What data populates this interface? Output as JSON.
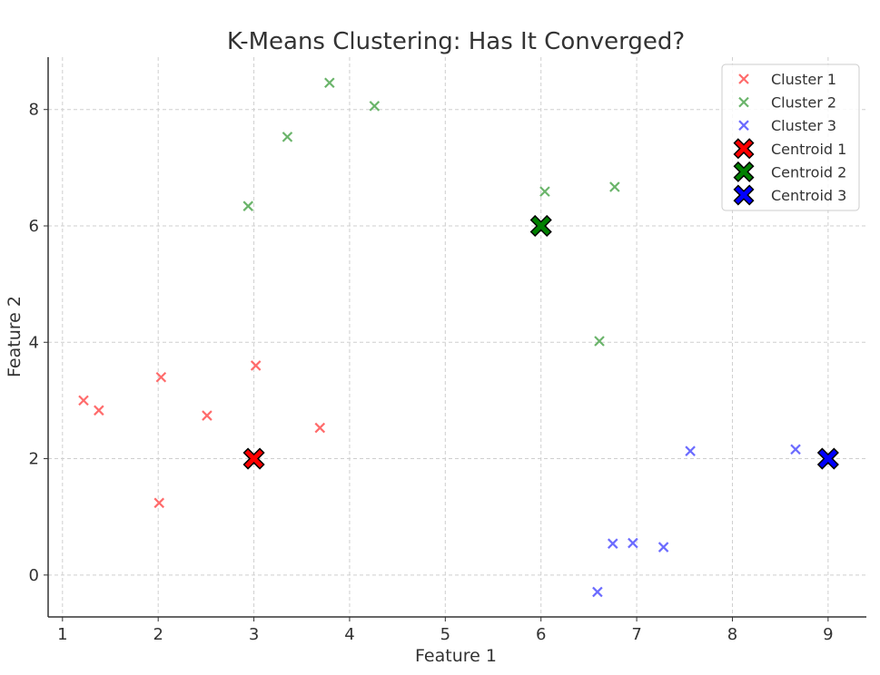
{
  "chart_data": {
    "type": "scatter",
    "title": "K-Means Clustering: Has It Converged?",
    "xlabel": "Feature 1",
    "ylabel": "Feature 2",
    "xlim": [
      0.85,
      9.4
    ],
    "ylim": [
      -0.72,
      8.9
    ],
    "xticks": [
      1,
      2,
      3,
      4,
      5,
      6,
      7,
      8,
      9
    ],
    "yticks": [
      0,
      2,
      4,
      6,
      8
    ],
    "grid": true,
    "legend_position": "top-right",
    "series": [
      {
        "name": "Cluster 1",
        "kind": "points",
        "color": "#ff6b6b",
        "points": [
          [
            1.22,
            3.0
          ],
          [
            1.38,
            2.83
          ],
          [
            2.03,
            3.4
          ],
          [
            2.51,
            2.74
          ],
          [
            3.02,
            3.6
          ],
          [
            3.69,
            2.53
          ],
          [
            2.01,
            1.24
          ]
        ]
      },
      {
        "name": "Cluster 2",
        "kind": "points",
        "color": "#6ab46a",
        "points": [
          [
            3.79,
            8.46
          ],
          [
            4.26,
            8.06
          ],
          [
            3.35,
            7.53
          ],
          [
            2.94,
            6.34
          ],
          [
            6.04,
            6.59
          ],
          [
            6.77,
            6.67
          ],
          [
            6.61,
            4.02
          ]
        ]
      },
      {
        "name": "Cluster 3",
        "kind": "points",
        "color": "#6b6bff",
        "points": [
          [
            7.56,
            2.13
          ],
          [
            8.66,
            2.16
          ],
          [
            6.75,
            0.54
          ],
          [
            6.96,
            0.55
          ],
          [
            7.28,
            0.48
          ],
          [
            6.59,
            -0.29
          ]
        ]
      },
      {
        "name": "Centroid 1",
        "kind": "centroid",
        "color": "#ff0000",
        "points": [
          [
            3,
            2
          ]
        ]
      },
      {
        "name": "Centroid 2",
        "kind": "centroid",
        "color": "#008000",
        "points": [
          [
            6,
            6
          ]
        ]
      },
      {
        "name": "Centroid 3",
        "kind": "centroid",
        "color": "#0000ff",
        "points": [
          [
            9,
            2
          ]
        ]
      }
    ]
  }
}
